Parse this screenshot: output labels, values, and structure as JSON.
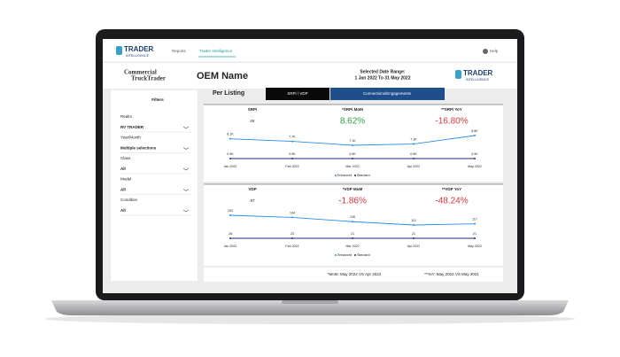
{
  "nav": {
    "logo": "TRADER",
    "logo_sub": "INTELLIGENCE",
    "menu": [
      "Reports",
      "Trader Intelligence"
    ],
    "help": "Help"
  },
  "header": {
    "brand_1": "Commercial",
    "brand_2": "TruckTrader",
    "title": "OEM Name",
    "date_label": "Selected Date Range:",
    "date_range": "1 Jan 2022 To 31 May 2022",
    "logo": "TRADER",
    "logo_sub": "INTELLIGENCE"
  },
  "filters": {
    "title": "Filters",
    "items": [
      {
        "label": "Realm",
        "value": "RV TRADER"
      },
      {
        "label": "Year/Month",
        "value": "Multiple selections"
      },
      {
        "label": "Class",
        "value": "All"
      },
      {
        "label": "Model",
        "value": "All"
      },
      {
        "label": "Condition",
        "value": "All"
      }
    ]
  },
  "tabs": {
    "section": "Per Listing",
    "items": [
      "SRPi / VDP",
      "Connections/Engagements"
    ]
  },
  "panels": [
    {
      "metric": "SRPi",
      "value": "4K",
      "mom_label": "*SRPi MoM",
      "mom": "8.62%",
      "yoy_label": "**SRPi YoY",
      "yoy": "-16.80%",
      "categories": [
        "Jan 2022",
        "Feb 2022",
        "Mar 2022",
        "Apr 2022",
        "May 2022"
      ],
      "series": [
        {
          "name": "Enhanced",
          "color": "#2a8ee6",
          "values": [
            8100,
            7700,
            7100,
            7300,
            8600
          ],
          "value_labels": [
            "8.1K",
            "7.7K",
            "7.1K",
            "7.3K",
            "8.6K"
          ]
        },
        {
          "name": "Standard",
          "color": "#1e2a78",
          "values": [
            900,
            900,
            900,
            900,
            900
          ],
          "value_labels": [
            "0.9K",
            "0.9K",
            "0.9K",
            "0.9K",
            "0.9K"
          ]
        }
      ]
    },
    {
      "metric": "VDP",
      "value": "87",
      "mom_label": "*VDP MoM",
      "mom": "-1.86%",
      "yoy_label": "**VDP YoY",
      "yoy": "-48.24%",
      "categories": [
        "Jan 2022",
        "Feb 2022",
        "Mar 2022",
        "Apr 2022",
        "May 2022"
      ],
      "series": [
        {
          "name": "Enhanced",
          "color": "#2a8ee6",
          "values": [
            153,
            144,
            126,
            112,
            117
          ]
        },
        {
          "name": "Standard",
          "color": "#1e2a78",
          "values": [
            28,
            23,
            21,
            21,
            21
          ]
        }
      ]
    }
  ],
  "footer": {
    "mom_note": "*MoM: May 2022 VS Apr 2022",
    "yoy_note": "**YoY: May 2022 VS May 2021"
  }
}
